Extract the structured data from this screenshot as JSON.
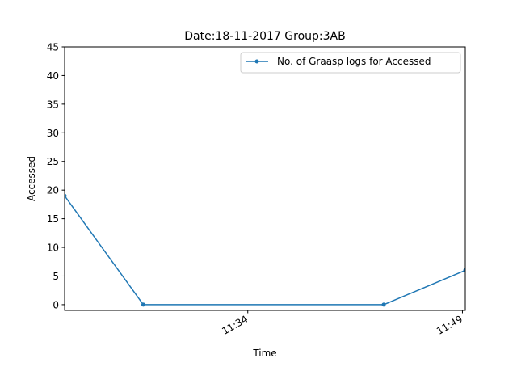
{
  "chart_data": {
    "type": "line",
    "title": "Date:18-11-2017  Group:3AB",
    "xlabel": "Time",
    "ylabel": "Accessed",
    "x_tick_labels": [
      "11:34",
      "11:49"
    ],
    "x_ticks_minutes": [
      34,
      49
    ],
    "x_range_minutes": [
      21.2,
      49.2
    ],
    "ylim": [
      -1,
      45
    ],
    "y_ticks": [
      0,
      5,
      10,
      15,
      20,
      25,
      30,
      35,
      40,
      45
    ],
    "grid": false,
    "legend_position": "top-right",
    "series": [
      {
        "name": "No. of Graasp logs for Accessed",
        "color": "#1f77b4",
        "x_minutes": [
          21.2,
          26.7,
          43.5,
          49.2
        ],
        "values": [
          19,
          0,
          0,
          6
        ]
      }
    ],
    "reference_line": {
      "value": 0.5,
      "color": "#00008b",
      "style": "dashed"
    }
  }
}
